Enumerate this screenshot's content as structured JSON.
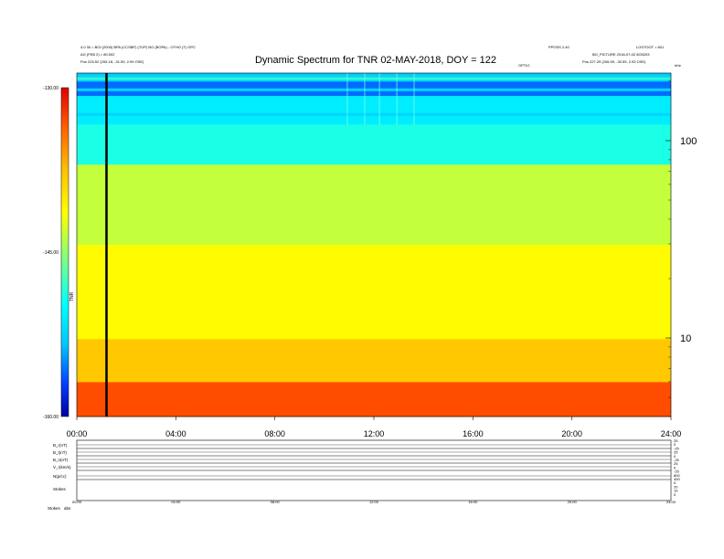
{
  "chart_data": {
    "type": "heatmap",
    "title": "Dynamic Spectrum for TNR 02-MAY-2018, DOY = 122",
    "header_left": [
      "4.0 30 = BOI (2000) BPA (CCSBP) (TOP) BO (BOPA) - OTHO (T) OPC",
      "AG (FEB 2) = 80.002",
      "Pos 225.52 (205.18, -31.59, 2.99 OSE)"
    ],
    "header_right": [
      "PPOSS 2.40",
      "LOSTOOT = 801",
      "BO_PICTURE 2018-07-02 8O0203",
      "Pos 227.29 (206.59, -30.59, 2.93 OSE)"
    ],
    "header_mid": "OPTIO",
    "corner_label": "kHz",
    "x_ticks": [
      "00:00",
      "04:00",
      "08:00",
      "12:00",
      "16:00",
      "20:00",
      "24:00"
    ],
    "x_range_hours": [
      0,
      24
    ],
    "y_axis": {
      "scale": "log",
      "range_khz": [
        4,
        220
      ],
      "ticks": [
        "100",
        "10"
      ],
      "tick_values": [
        100,
        10
      ]
    },
    "colorbar": {
      "range": [
        -160,
        -130
      ],
      "ticks": [
        "-130.00",
        "-145.00",
        "-160.00"
      ],
      "tick_values": [
        -130,
        -145,
        -160
      ],
      "label": "TNR",
      "colormap": [
        "#0000a0",
        "#0040ff",
        "#00c8ff",
        "#00ffff",
        "#80ff80",
        "#ffff00",
        "#ffc000",
        "#ff6000",
        "#ff0000"
      ]
    },
    "cursor_time_hours": 1.2,
    "bands": [
      {
        "from_khz": 220,
        "to_khz": 200,
        "level": -152
      },
      {
        "from_khz": 200,
        "to_khz": 170,
        "level": -155
      },
      {
        "from_khz": 170,
        "to_khz": 120,
        "level": -150
      },
      {
        "from_khz": 120,
        "to_khz": 75,
        "level": -148
      },
      {
        "from_khz": 75,
        "to_khz": 30,
        "level": -143
      },
      {
        "from_khz": 30,
        "to_khz": 10,
        "level": -141
      },
      {
        "from_khz": 10,
        "to_khz": 6,
        "level": -138
      },
      {
        "from_khz": 6,
        "to_khz": 4,
        "level": -133
      }
    ],
    "bottom_panels": {
      "labels": [
        "B_r(nT)",
        "B_t(nT)",
        "B_n(nT)",
        "V_r(km/s)",
        "N(p/cc)",
        "Stokes"
      ],
      "right_ticks": [
        "25",
        "0",
        "-25",
        "25",
        "0",
        "-25",
        "25",
        "0",
        "-25",
        "800",
        "400",
        "0",
        "20",
        "10",
        "0"
      ],
      "x_ticks": [
        "00:00",
        "04:00",
        "08:00",
        "12:00",
        "16:00",
        "20:00",
        "24:00"
      ],
      "footer_label": "Stokes",
      "footer_value": "abs"
    }
  }
}
